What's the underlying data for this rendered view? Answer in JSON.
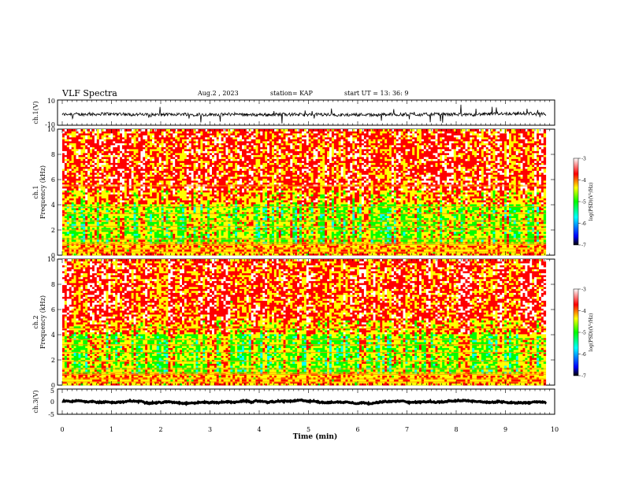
{
  "header": {
    "title": "VLF Spectra",
    "date": "Aug.2 , 2023",
    "station": "station= KAP",
    "start_time": "start UT = 13: 36: 9"
  },
  "chart_data": [
    {
      "id": "ch1-waveform",
      "type": "line",
      "ylabel": "ch.1(V)",
      "ylim": [
        -10,
        10
      ],
      "yticks": [
        "10",
        "-10"
      ],
      "xlim": [
        0,
        10
      ],
      "x_data_end": 9.82,
      "baseline": -1.5,
      "amplitude": 2.5,
      "color": "#000000"
    },
    {
      "id": "ch1-spectrogram",
      "type": "heatmap",
      "ylabel": "Frequency (kHz)",
      "channel_label": "ch.1",
      "ylim": [
        0,
        10
      ],
      "yticks": [
        "0",
        "2",
        "4",
        "6",
        "8",
        "10"
      ],
      "xlim": [
        0,
        10
      ],
      "x_data_end": 9.82,
      "colorbar": {
        "label": "log(PSD)(V²/Hz)",
        "range": [
          -7,
          -3
        ],
        "ticks": [
          "-3",
          "-4",
          "-5",
          "-6",
          "-7"
        ]
      },
      "colormap": [
        "#000000",
        "#0000ff",
        "#00ffff",
        "#00ff00",
        "#ffff00",
        "#ff0000",
        "#ffffff"
      ],
      "narrowband_lines_khz": [
        0.25,
        0.5,
        0.85,
        1.0,
        1.3,
        2.0,
        2.3,
        2.7,
        3.3,
        3.85,
        5.5
      ]
    },
    {
      "id": "ch2-spectrogram",
      "type": "heatmap",
      "ylabel": "Frequency (kHz)",
      "channel_label": "ch.2",
      "ylim": [
        0,
        10
      ],
      "yticks": [
        "0",
        "2",
        "4",
        "6",
        "8",
        "10"
      ],
      "xlim": [
        0,
        10
      ],
      "x_data_end": 9.82,
      "colorbar": {
        "label": "log(PSD)(V²/Hz)",
        "range": [
          -7,
          -3
        ],
        "ticks": [
          "-3",
          "-4",
          "-5",
          "-6",
          "-7"
        ]
      },
      "colormap": [
        "#000000",
        "#0000ff",
        "#00ffff",
        "#00ff00",
        "#ffff00",
        "#ff0000",
        "#ffffff"
      ],
      "narrowband_lines_khz": [
        0.25,
        0.5,
        0.85,
        1.0,
        1.3,
        1.9,
        2.6,
        3.2,
        3.6,
        4.5
      ]
    },
    {
      "id": "ch3-waveform",
      "type": "line",
      "ylabel": "ch.3(V)",
      "ylim": [
        -5,
        5
      ],
      "yticks": [
        "5",
        "0",
        "-5"
      ],
      "xlim": [
        0,
        10
      ],
      "x_data_end": 9.82,
      "baseline": 0,
      "amplitude": 0.35,
      "color": "#000000"
    }
  ],
  "x_axis": {
    "label": "Time (min)",
    "ticks": [
      "0",
      "1",
      "2",
      "3",
      "4",
      "5",
      "6",
      "7",
      "8",
      "9",
      "10"
    ],
    "range": [
      0,
      10
    ]
  }
}
